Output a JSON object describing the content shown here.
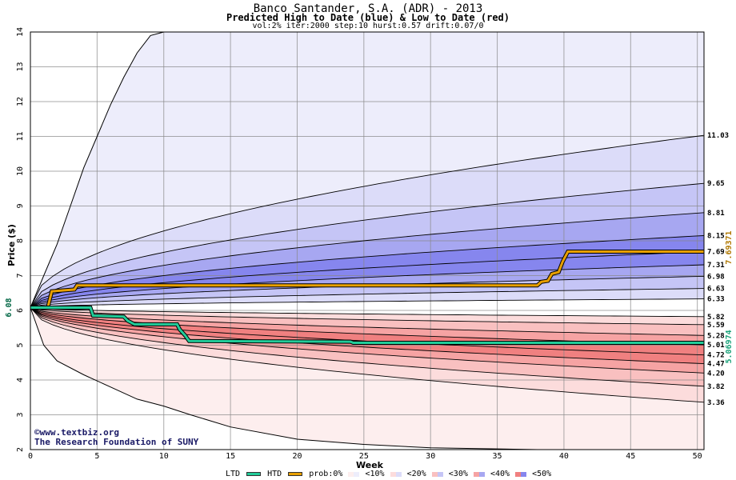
{
  "header": {
    "title": "Banco Santander, S.A. (ADR) - 2013",
    "subtitle": "Predicted High to Date (blue) &  Low to Date (red)",
    "params": "vol:2% iter:2000 step:10 hurst:0.57 drift:0.07/0"
  },
  "credit": {
    "line1": "©www.textbiz.org",
    "line2": "The Research Foundation of SUNY"
  },
  "legend": {
    "ltd": "LTD",
    "htd": "HTD",
    "prob": "prob:0%",
    "b10": "<10%",
    "b20": "<20%",
    "b30": "<30%",
    "b40": "<40%",
    "b50": "<50%"
  },
  "chart_data": {
    "type": "area",
    "xlabel": "Week",
    "ylabel": "Price ($)",
    "xlim": [
      0,
      50.5
    ],
    "ylim": [
      2,
      14
    ],
    "x_ticks": [
      0,
      5,
      10,
      15,
      20,
      25,
      30,
      35,
      40,
      45,
      50
    ],
    "y_ticks": [
      2,
      3,
      4,
      5,
      6,
      7,
      8,
      9,
      10,
      11,
      12,
      13,
      14
    ],
    "start_price": 6.08,
    "start_label": "6.08",
    "high_end_labels": [
      "11.03",
      "9.65",
      "8.81",
      "8.15",
      "7.69",
      "7.31",
      "6.98",
      "6.63",
      "6.33"
    ],
    "high_end_values": [
      11.03,
      9.65,
      8.81,
      8.15,
      7.69,
      7.31,
      6.98,
      6.63,
      6.33
    ],
    "low_end_labels": [
      "5.82",
      "5.59",
      "5.28",
      "5.01",
      "4.72",
      "4.47",
      "4.20",
      "3.82",
      "3.36"
    ],
    "low_end_values": [
      5.82,
      5.59,
      5.28,
      5.01,
      4.72,
      4.47,
      4.2,
      3.82,
      3.36
    ],
    "outer_high": [
      [
        0,
        6.08
      ],
      [
        1,
        7.0
      ],
      [
        2,
        7.9
      ],
      [
        3,
        9.0
      ],
      [
        4,
        10.1
      ],
      [
        5,
        11.0
      ],
      [
        6,
        11.9
      ],
      [
        7,
        12.7
      ],
      [
        8,
        13.4
      ],
      [
        9,
        13.9
      ],
      [
        10,
        14
      ]
    ],
    "outer_low": [
      [
        0,
        6.08
      ],
      [
        1,
        5.0
      ],
      [
        2,
        4.55
      ],
      [
        4,
        4.15
      ],
      [
        6,
        3.8
      ],
      [
        8,
        3.45
      ],
      [
        10,
        3.25
      ],
      [
        12,
        3.0
      ],
      [
        15,
        2.65
      ],
      [
        20,
        2.3
      ],
      [
        25,
        2.15
      ],
      [
        30,
        2.05
      ],
      [
        38,
        2.0
      ]
    ],
    "htd_label": "7.69371",
    "htd_color": "#e8a000",
    "htd_series": [
      [
        0,
        6.08
      ],
      [
        1.3,
        6.08
      ],
      [
        1.6,
        6.55
      ],
      [
        3.3,
        6.6
      ],
      [
        3.5,
        6.72
      ],
      [
        38,
        6.72
      ],
      [
        38.3,
        6.82
      ],
      [
        38.8,
        6.85
      ],
      [
        39.1,
        7.05
      ],
      [
        39.6,
        7.1
      ],
      [
        39.9,
        7.4
      ],
      [
        40.3,
        7.69
      ],
      [
        50.5,
        7.69
      ]
    ],
    "ltd_label": "5.06974",
    "ltd_color": "#22cc99",
    "ltd_series": [
      [
        0,
        6.08
      ],
      [
        4.5,
        6.08
      ],
      [
        4.7,
        5.85
      ],
      [
        7,
        5.82
      ],
      [
        7.3,
        5.7
      ],
      [
        7.8,
        5.6
      ],
      [
        11,
        5.6
      ],
      [
        11.2,
        5.45
      ],
      [
        11.6,
        5.28
      ],
      [
        11.9,
        5.12
      ],
      [
        24,
        5.1
      ],
      [
        24.2,
        5.07
      ],
      [
        50.5,
        5.07
      ]
    ],
    "colors": {
      "blue_bands": [
        "#ededfb",
        "#dcdcf9",
        "#c5c5f6",
        "#a7a7f1",
        "#8686ee"
      ],
      "red_bands": [
        "#fdeeee",
        "#fcdcdc",
        "#f9c0c0",
        "#f6a3a3",
        "#f08080"
      ],
      "grid": "#888888"
    }
  }
}
